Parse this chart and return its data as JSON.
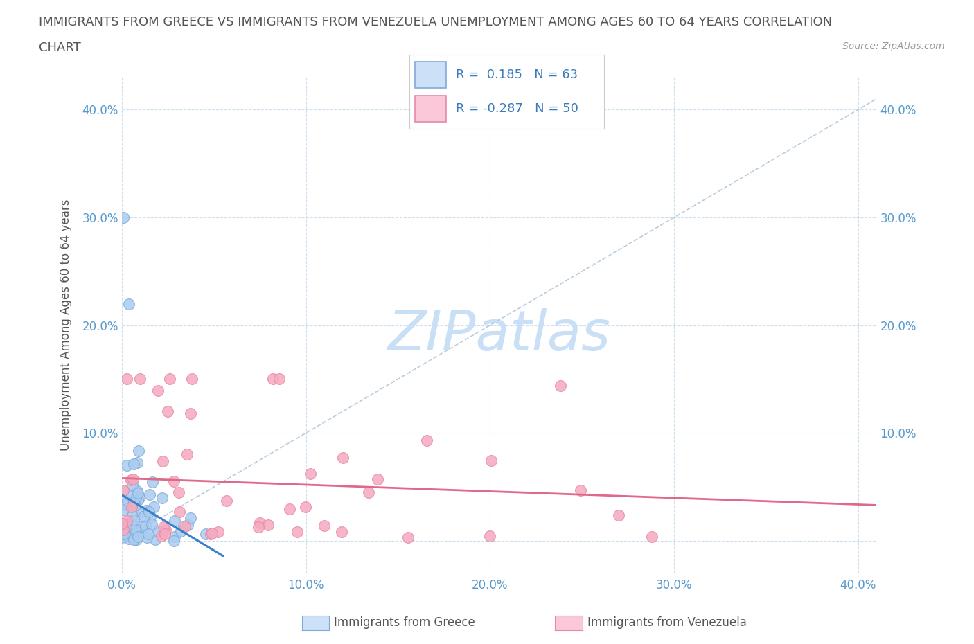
{
  "title_line1": "IMMIGRANTS FROM GREECE VS IMMIGRANTS FROM VENEZUELA UNEMPLOYMENT AMONG AGES 60 TO 64 YEARS CORRELATION",
  "title_line2": "CHART",
  "source_text": "Source: ZipAtlas.com",
  "ylabel": "Unemployment Among Ages 60 to 64 years",
  "xlim": [
    0.0,
    0.41
  ],
  "ylim": [
    -0.03,
    0.43
  ],
  "x_ticks": [
    0.0,
    0.1,
    0.2,
    0.3,
    0.4
  ],
  "y_ticks": [
    0.0,
    0.1,
    0.2,
    0.3,
    0.4
  ],
  "greece_color": "#aaccf0",
  "venezuela_color": "#f5aabf",
  "greece_edge_color": "#80aada",
  "venezuela_edge_color": "#e888a8",
  "greece_line_color": "#3a80c8",
  "venezuela_line_color": "#e06888",
  "diagonal_color": "#b8ccdd",
  "R_greece": 0.185,
  "N_greece": 63,
  "R_venezuela": -0.287,
  "N_venezuela": 50,
  "legend_box_color_greece": "#cce0f8",
  "legend_box_color_venezuela": "#fac8d8",
  "legend_label1": "Immigrants from Greece",
  "legend_label2": "Immigrants from Venezuela",
  "watermark_color": "#c8dff5",
  "tick_color": "#5599cc",
  "label_color": "#555555",
  "source_color": "#999999"
}
